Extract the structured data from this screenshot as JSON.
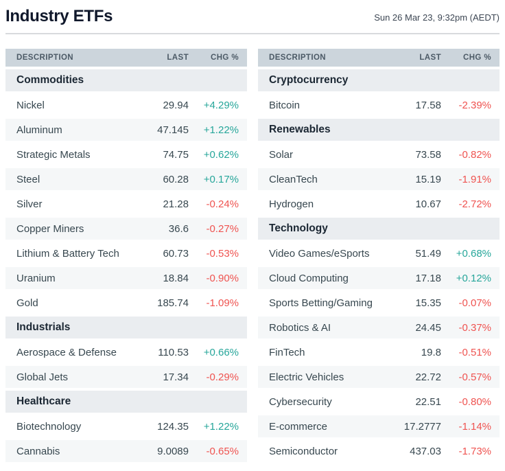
{
  "header": {
    "title": "Industry ETFs",
    "timestamp": "Sun 26 Mar 23, 9:32pm (AEDT)"
  },
  "columns": [
    "DESCRIPTION",
    "LAST",
    "CHG %"
  ],
  "colors": {
    "positive": "#26a69a",
    "negative": "#ef5350",
    "header_row_bg": "#ccd5dc",
    "category_row_bg": "#eaedf0",
    "alt_row_bg": "#f5f7f8"
  },
  "tables": {
    "left": {
      "rows": [
        {
          "type": "category",
          "name": "Commodities"
        },
        {
          "type": "item",
          "name": "Nickel",
          "last": "29.94",
          "chg": "+4.29%",
          "dir": "up"
        },
        {
          "type": "item",
          "name": "Aluminum",
          "last": "47.145",
          "chg": "+1.22%",
          "dir": "up"
        },
        {
          "type": "item",
          "name": "Strategic Metals",
          "last": "74.75",
          "chg": "+0.62%",
          "dir": "up"
        },
        {
          "type": "item",
          "name": "Steel",
          "last": "60.28",
          "chg": "+0.17%",
          "dir": "up"
        },
        {
          "type": "item",
          "name": "Silver",
          "last": "21.28",
          "chg": "-0.24%",
          "dir": "down"
        },
        {
          "type": "item",
          "name": "Copper Miners",
          "last": "36.6",
          "chg": "-0.27%",
          "dir": "down"
        },
        {
          "type": "item",
          "name": "Lithium & Battery Tech",
          "last": "60.73",
          "chg": "-0.53%",
          "dir": "down"
        },
        {
          "type": "item",
          "name": "Uranium",
          "last": "18.84",
          "chg": "-0.90%",
          "dir": "down"
        },
        {
          "type": "item",
          "name": "Gold",
          "last": "185.74",
          "chg": "-1.09%",
          "dir": "down"
        },
        {
          "type": "category",
          "name": "Industrials"
        },
        {
          "type": "item",
          "name": "Aerospace & Defense",
          "last": "110.53",
          "chg": "+0.66%",
          "dir": "up"
        },
        {
          "type": "item",
          "name": "Global Jets",
          "last": "17.34",
          "chg": "-0.29%",
          "dir": "down"
        },
        {
          "type": "category",
          "name": "Healthcare"
        },
        {
          "type": "item",
          "name": "Biotechnology",
          "last": "124.35",
          "chg": "+1.22%",
          "dir": "up"
        },
        {
          "type": "item",
          "name": "Cannabis",
          "last": "9.0089",
          "chg": "-0.65%",
          "dir": "down"
        }
      ]
    },
    "right": {
      "rows": [
        {
          "type": "category",
          "name": "Cryptocurrency"
        },
        {
          "type": "item",
          "name": "Bitcoin",
          "last": "17.58",
          "chg": "-2.39%",
          "dir": "down"
        },
        {
          "type": "category",
          "name": "Renewables"
        },
        {
          "type": "item",
          "name": "Solar",
          "last": "73.58",
          "chg": "-0.82%",
          "dir": "down"
        },
        {
          "type": "item",
          "name": "CleanTech",
          "last": "15.19",
          "chg": "-1.91%",
          "dir": "down"
        },
        {
          "type": "item",
          "name": "Hydrogen",
          "last": "10.67",
          "chg": "-2.72%",
          "dir": "down"
        },
        {
          "type": "category",
          "name": "Technology"
        },
        {
          "type": "item",
          "name": "Video Games/eSports",
          "last": "51.49",
          "chg": "+0.68%",
          "dir": "up"
        },
        {
          "type": "item",
          "name": "Cloud Computing",
          "last": "17.18",
          "chg": "+0.12%",
          "dir": "up"
        },
        {
          "type": "item",
          "name": "Sports Betting/Gaming",
          "last": "15.35",
          "chg": "-0.07%",
          "dir": "down"
        },
        {
          "type": "item",
          "name": "Robotics & AI",
          "last": "24.45",
          "chg": "-0.37%",
          "dir": "down"
        },
        {
          "type": "item",
          "name": "FinTech",
          "last": "19.8",
          "chg": "-0.51%",
          "dir": "down"
        },
        {
          "type": "item",
          "name": "Electric Vehicles",
          "last": "22.72",
          "chg": "-0.57%",
          "dir": "down"
        },
        {
          "type": "item",
          "name": "Cybersecurity",
          "last": "22.51",
          "chg": "-0.80%",
          "dir": "down"
        },
        {
          "type": "item",
          "name": "E-commerce",
          "last": "17.2777",
          "chg": "-1.14%",
          "dir": "down"
        },
        {
          "type": "item",
          "name": "Semiconductor",
          "last": "437.03",
          "chg": "-1.73%",
          "dir": "down"
        }
      ]
    }
  }
}
